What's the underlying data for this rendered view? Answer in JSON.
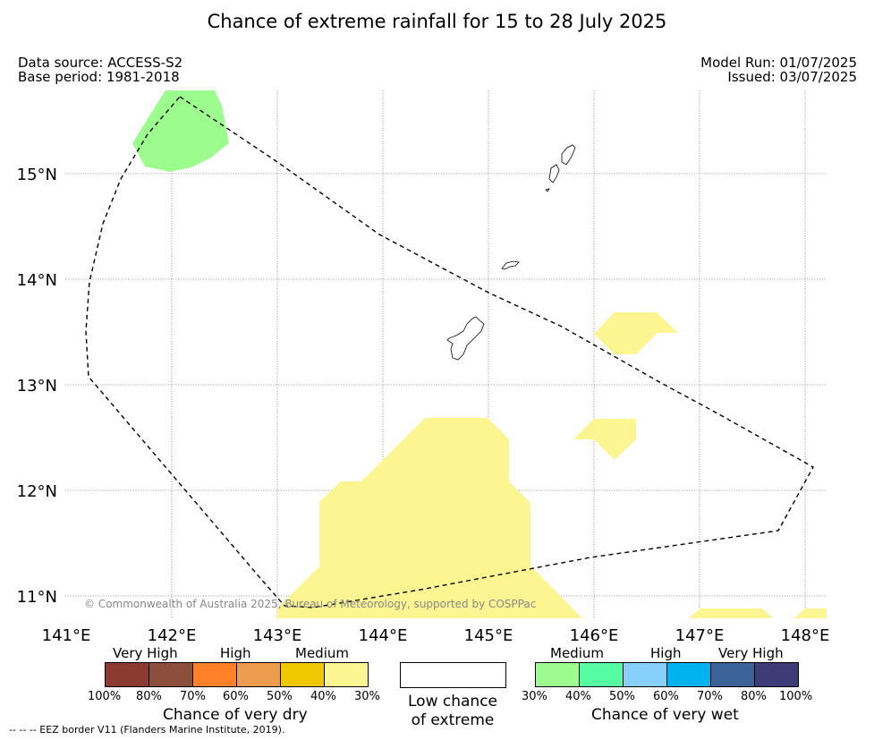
{
  "header": {
    "title": "Chance of extreme rainfall for 15 to 28 July 2025",
    "data_source": "Data source: ACCESS-S2",
    "base_period": "Base period: 1981-2018",
    "model_run": "Model Run: 01/07/2025",
    "issued": "Issued: 03/07/2025"
  },
  "map": {
    "lon_ticks": [
      "141°E",
      "142°E",
      "143°E",
      "144°E",
      "145°E",
      "146°E",
      "147°E",
      "148°E"
    ],
    "lat_ticks": [
      "15°N",
      "14°N",
      "13°N",
      "12°N",
      "11°N"
    ],
    "lon_range": [
      141.0,
      148.2
    ],
    "lat_range": [
      10.8,
      15.8
    ],
    "copyright": "© Commonwealth of Australia 2025, Bureau of Meteorology, supported by COSPPac",
    "colors": {
      "medium_dry": "#fcf591",
      "medium_wet": "#9cfc8e",
      "gridline": "#888888",
      "eez_border": "#000000"
    }
  },
  "legend": {
    "dry": {
      "categories": [
        "Very High",
        "High",
        "Medium"
      ],
      "colors": [
        "#8c3b30",
        "#8c4f3c",
        "#fe8129",
        "#ed9c4e",
        "#f0c800",
        "#fcf591"
      ],
      "ticks": [
        "100%",
        "80%",
        "70%",
        "60%",
        "50%",
        "40%",
        "30%"
      ],
      "title": "Chance of very dry"
    },
    "low": {
      "title_line1": "Low chance",
      "title_line2": "of extreme",
      "color": "#ffffff"
    },
    "wet": {
      "categories": [
        "Medium",
        "High",
        "Very High"
      ],
      "colors": [
        "#9cfc8e",
        "#56fca2",
        "#87d0fc",
        "#00b2ee",
        "#3b6299",
        "#3e3c76"
      ],
      "ticks": [
        "30%",
        "40%",
        "50%",
        "60%",
        "70%",
        "80%",
        "100%"
      ],
      "title": "Chance of very wet"
    }
  },
  "footer": "--  --  -- EEZ border V11 (Flanders Marine Institute, 2019)."
}
